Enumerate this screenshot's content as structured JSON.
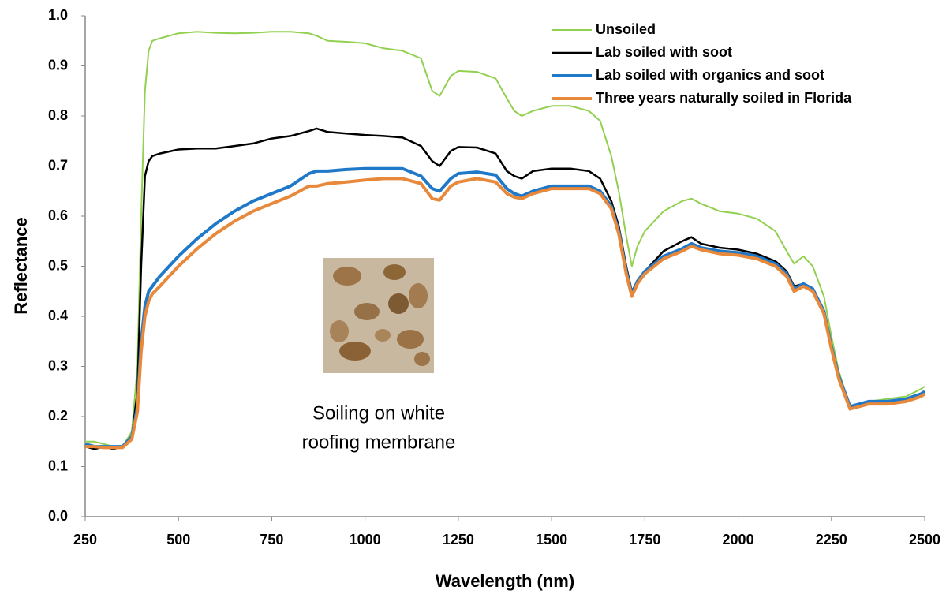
{
  "chart_data": {
    "type": "line",
    "xlabel": "Wavelength (nm)",
    "ylabel": "Reflectance",
    "annotation": [
      "Soiling on white",
      "roofing membrane"
    ],
    "x": [
      250,
      275,
      300,
      325,
      350,
      375,
      390,
      400,
      410,
      420,
      430,
      450,
      500,
      550,
      600,
      650,
      700,
      750,
      800,
      850,
      870,
      900,
      950,
      1000,
      1050,
      1100,
      1150,
      1180,
      1200,
      1230,
      1250,
      1300,
      1350,
      1380,
      1400,
      1420,
      1450,
      1500,
      1550,
      1600,
      1630,
      1660,
      1680,
      1700,
      1715,
      1730,
      1750,
      1800,
      1850,
      1875,
      1900,
      1950,
      2000,
      2050,
      2100,
      2130,
      2150,
      2175,
      2200,
      2230,
      2250,
      2270,
      2300,
      2350,
      2400,
      2450,
      2490,
      2500
    ],
    "series": [
      {
        "name": "Unsoiled",
        "color": "#92d050",
        "values": [
          0.15,
          0.15,
          0.145,
          0.14,
          0.14,
          0.17,
          0.3,
          0.6,
          0.85,
          0.93,
          0.95,
          0.955,
          0.965,
          0.968,
          0.966,
          0.965,
          0.966,
          0.968,
          0.968,
          0.965,
          0.96,
          0.95,
          0.948,
          0.945,
          0.935,
          0.93,
          0.915,
          0.85,
          0.84,
          0.88,
          0.89,
          0.888,
          0.875,
          0.835,
          0.81,
          0.8,
          0.81,
          0.82,
          0.82,
          0.81,
          0.79,
          0.72,
          0.65,
          0.56,
          0.5,
          0.54,
          0.57,
          0.61,
          0.63,
          0.635,
          0.625,
          0.61,
          0.605,
          0.595,
          0.57,
          0.53,
          0.505,
          0.52,
          0.5,
          0.44,
          0.36,
          0.29,
          0.22,
          0.23,
          0.235,
          0.24,
          0.255,
          0.26
        ]
      },
      {
        "name": "Lab soiled with soot",
        "color": "#000000",
        "values": [
          0.14,
          0.135,
          0.14,
          0.135,
          0.14,
          0.16,
          0.25,
          0.5,
          0.68,
          0.71,
          0.72,
          0.725,
          0.733,
          0.735,
          0.735,
          0.74,
          0.745,
          0.755,
          0.76,
          0.77,
          0.775,
          0.768,
          0.765,
          0.762,
          0.76,
          0.757,
          0.74,
          0.71,
          0.7,
          0.73,
          0.738,
          0.737,
          0.725,
          0.69,
          0.68,
          0.675,
          0.69,
          0.695,
          0.695,
          0.69,
          0.675,
          0.63,
          0.58,
          0.5,
          0.45,
          0.47,
          0.49,
          0.53,
          0.55,
          0.558,
          0.545,
          0.537,
          0.533,
          0.525,
          0.51,
          0.49,
          0.46,
          0.465,
          0.455,
          0.41,
          0.34,
          0.28,
          0.22,
          0.225,
          0.23,
          0.235,
          0.245,
          0.25
        ]
      },
      {
        "name": "Lab soiled with organics and soot",
        "color": "#1f78c8",
        "values": [
          0.145,
          0.14,
          0.14,
          0.14,
          0.14,
          0.16,
          0.22,
          0.35,
          0.42,
          0.45,
          0.46,
          0.48,
          0.52,
          0.555,
          0.585,
          0.61,
          0.63,
          0.645,
          0.66,
          0.685,
          0.69,
          0.69,
          0.693,
          0.695,
          0.695,
          0.695,
          0.68,
          0.655,
          0.65,
          0.675,
          0.685,
          0.688,
          0.682,
          0.655,
          0.645,
          0.64,
          0.65,
          0.66,
          0.66,
          0.66,
          0.65,
          0.62,
          0.57,
          0.49,
          0.445,
          0.47,
          0.49,
          0.52,
          0.535,
          0.545,
          0.537,
          0.53,
          0.527,
          0.52,
          0.505,
          0.485,
          0.455,
          0.465,
          0.455,
          0.41,
          0.34,
          0.28,
          0.22,
          0.23,
          0.23,
          0.235,
          0.245,
          0.25
        ]
      },
      {
        "name": "Three years naturally soiled in Florida",
        "color": "#e8883a",
        "values": [
          0.14,
          0.14,
          0.138,
          0.138,
          0.138,
          0.155,
          0.21,
          0.33,
          0.4,
          0.43,
          0.445,
          0.46,
          0.5,
          0.535,
          0.565,
          0.59,
          0.61,
          0.625,
          0.64,
          0.66,
          0.66,
          0.665,
          0.668,
          0.672,
          0.675,
          0.675,
          0.665,
          0.635,
          0.632,
          0.66,
          0.668,
          0.675,
          0.668,
          0.645,
          0.638,
          0.635,
          0.645,
          0.655,
          0.655,
          0.655,
          0.645,
          0.615,
          0.565,
          0.485,
          0.44,
          0.465,
          0.485,
          0.515,
          0.53,
          0.54,
          0.533,
          0.525,
          0.522,
          0.515,
          0.5,
          0.48,
          0.45,
          0.46,
          0.45,
          0.405,
          0.335,
          0.275,
          0.215,
          0.225,
          0.225,
          0.23,
          0.24,
          0.245
        ]
      }
    ],
    "xlim": [
      250,
      2500
    ],
    "xticks": [
      250,
      500,
      750,
      1000,
      1250,
      1500,
      1750,
      2000,
      2250,
      2500
    ],
    "ylim": [
      0,
      1
    ],
    "yticks": [
      {
        "value": 0,
        "label": "0.0"
      },
      0.1,
      0.2,
      0.3,
      0.4,
      0.5,
      0.6,
      0.7,
      0.8,
      0.9,
      {
        "value": 1,
        "label": "1.0"
      }
    ],
    "grid": false,
    "legend": "upper right"
  }
}
